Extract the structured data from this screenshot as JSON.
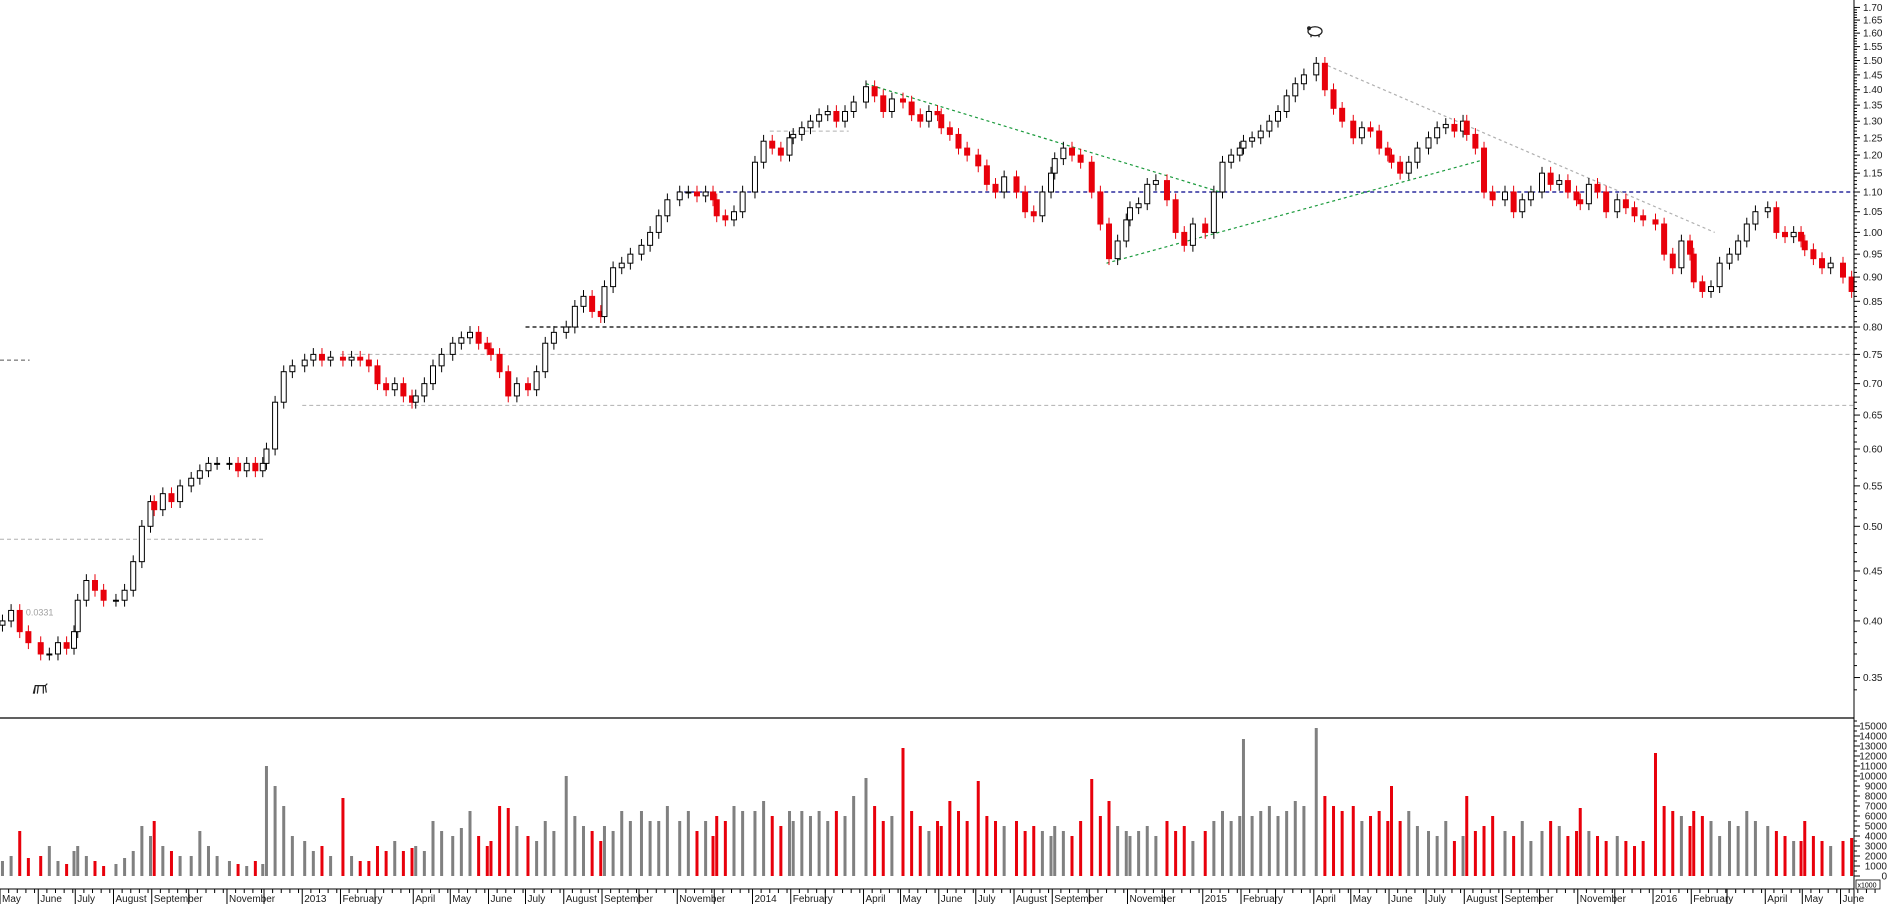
{
  "chart_data": {
    "type": "candlestick",
    "price_axis": {
      "scale": "log",
      "ylim": [
        0.33,
        1.72
      ],
      "ticks": [
        0.35,
        0.4,
        0.45,
        0.5,
        0.55,
        0.6,
        0.65,
        0.7,
        0.75,
        0.8,
        0.85,
        0.9,
        0.95,
        1.0,
        1.05,
        1.1,
        1.15,
        1.2,
        1.25,
        1.3,
        1.35,
        1.4,
        1.45,
        1.5,
        1.55,
        1.6,
        1.65,
        1.7
      ]
    },
    "volume_axis": {
      "unit_label": "x1000",
      "ylim": [
        0,
        15000
      ],
      "ticks": [
        0,
        1000,
        2000,
        3000,
        4000,
        5000,
        6000,
        7000,
        8000,
        9000,
        10000,
        11000,
        12000,
        13000,
        14000,
        15000
      ]
    },
    "x_axis": {
      "range": [
        "2012-05",
        "2016-06"
      ],
      "ticks": [
        {
          "date": "2012-05",
          "label": "May"
        },
        {
          "date": "2012-06",
          "label": "June"
        },
        {
          "date": "2012-07",
          "label": "July"
        },
        {
          "date": "2012-08",
          "label": "August"
        },
        {
          "date": "2012-09",
          "label": "September"
        },
        {
          "date": "2012-10",
          "label": ""
        },
        {
          "date": "2012-11",
          "label": "November"
        },
        {
          "date": "2012-12",
          "label": ""
        },
        {
          "date": "2013-01",
          "label": "2013"
        },
        {
          "date": "2013-02",
          "label": "February"
        },
        {
          "date": "2013-03",
          "label": ""
        },
        {
          "date": "2013-04",
          "label": "April"
        },
        {
          "date": "2013-05",
          "label": "May"
        },
        {
          "date": "2013-06",
          "label": "June"
        },
        {
          "date": "2013-07",
          "label": "July"
        },
        {
          "date": "2013-08",
          "label": "August"
        },
        {
          "date": "2013-09",
          "label": "September"
        },
        {
          "date": "2013-10",
          "label": ""
        },
        {
          "date": "2013-11",
          "label": "November"
        },
        {
          "date": "2013-12",
          "label": ""
        },
        {
          "date": "2014-01",
          "label": "2014"
        },
        {
          "date": "2014-02",
          "label": "February"
        },
        {
          "date": "2014-03",
          "label": ""
        },
        {
          "date": "2014-04",
          "label": "April"
        },
        {
          "date": "2014-05",
          "label": "May"
        },
        {
          "date": "2014-06",
          "label": "June"
        },
        {
          "date": "2014-07",
          "label": "July"
        },
        {
          "date": "2014-08",
          "label": "August"
        },
        {
          "date": "2014-09",
          "label": "September"
        },
        {
          "date": "2014-10",
          "label": ""
        },
        {
          "date": "2014-11",
          "label": "November"
        },
        {
          "date": "2014-12",
          "label": ""
        },
        {
          "date": "2015-01",
          "label": "2015"
        },
        {
          "date": "2015-02",
          "label": "February"
        },
        {
          "date": "2015-03",
          "label": ""
        },
        {
          "date": "2015-04",
          "label": "April"
        },
        {
          "date": "2015-05",
          "label": "May"
        },
        {
          "date": "2015-06",
          "label": "June"
        },
        {
          "date": "2015-07",
          "label": "July"
        },
        {
          "date": "2015-08",
          "label": "August"
        },
        {
          "date": "2015-09",
          "label": "September"
        },
        {
          "date": "2015-10",
          "label": ""
        },
        {
          "date": "2015-11",
          "label": "November"
        },
        {
          "date": "2015-12",
          "label": ""
        },
        {
          "date": "2016-01",
          "label": "2016"
        },
        {
          "date": "2016-02",
          "label": "February"
        },
        {
          "date": "2016-03",
          "label": ""
        },
        {
          "date": "2016-04",
          "label": "April"
        },
        {
          "date": "2016-05",
          "label": "May"
        },
        {
          "date": "2016-06",
          "label": "June"
        }
      ]
    },
    "colors": {
      "up": "#000000",
      "down": "#e8000b",
      "volume_up": "#808080",
      "volume_down": "#e8000b",
      "trendline": "#1a9a3c",
      "level_primary": "#00008b",
      "level_secondary": "#000000",
      "level_minor": "#b0b0b0"
    },
    "weekly_close": {
      "2012-05": [
        0.4,
        0.41,
        0.39,
        0.38
      ],
      "2012-06": [
        0.37,
        0.37,
        0.38,
        0.375,
        0.39
      ],
      "2012-07": [
        0.42,
        0.44,
        0.43,
        0.42
      ],
      "2012-08": [
        0.42,
        0.43,
        0.46,
        0.5,
        0.53
      ],
      "2012-09": [
        0.52,
        0.54,
        0.53,
        0.55
      ],
      "2012-10": [
        0.56,
        0.57,
        0.58,
        0.58
      ],
      "2012-11": [
        0.58,
        0.57,
        0.58,
        0.57,
        0.58
      ],
      "2012-12": [
        0.6,
        0.67,
        0.72,
        0.73
      ],
      "2013-01": [
        0.74,
        0.75,
        0.74,
        0.745
      ],
      "2013-02": [
        0.74,
        0.745,
        0.74,
        0.73
      ],
      "2013-03": [
        0.7,
        0.69,
        0.7,
        0.68,
        0.67
      ],
      "2013-04": [
        0.68,
        0.7,
        0.73,
        0.75
      ],
      "2013-05": [
        0.77,
        0.78,
        0.79,
        0.77,
        0.76
      ],
      "2013-06": [
        0.75,
        0.72,
        0.68,
        0.7
      ],
      "2013-07": [
        0.69,
        0.72,
        0.77,
        0.79
      ],
      "2013-08": [
        0.8,
        0.84,
        0.86,
        0.83,
        0.82
      ],
      "2013-09": [
        0.88,
        0.92,
        0.93,
        0.95
      ],
      "2013-10": [
        0.97,
        1.0,
        1.04,
        1.08
      ],
      "2013-11": [
        1.1,
        1.1,
        1.09,
        1.1,
        1.08
      ],
      "2013-12": [
        1.04,
        1.03,
        1.05,
        1.1
      ],
      "2014-01": [
        1.18,
        1.24,
        1.22,
        1.2,
        1.25
      ],
      "2014-02": [
        1.26,
        1.28,
        1.3,
        1.32
      ],
      "2014-03": [
        1.33,
        1.3,
        1.33,
        1.36
      ],
      "2014-04": [
        1.41,
        1.38,
        1.33,
        1.37
      ],
      "2014-05": [
        1.36,
        1.32,
        1.3,
        1.33,
        1.32
      ],
      "2014-06": [
        1.28,
        1.26,
        1.22,
        1.2
      ],
      "2014-07": [
        1.17,
        1.12,
        1.1,
        1.14
      ],
      "2014-08": [
        1.1,
        1.05,
        1.04,
        1.1,
        1.15
      ],
      "2014-09": [
        1.19,
        1.22,
        1.2,
        1.18
      ],
      "2014-10": [
        1.1,
        1.02,
        0.94,
        0.98,
        1.03
      ],
      "2014-11": [
        1.06,
        1.07,
        1.12,
        1.13
      ],
      "2014-12": [
        1.08,
        1.0,
        0.97,
        1.02
      ],
      "2015-01": [
        1.0,
        1.1,
        1.18,
        1.2,
        1.22
      ],
      "2015-02": [
        1.24,
        1.25,
        1.27,
        1.3
      ],
      "2015-03": [
        1.33,
        1.38,
        1.42,
        1.45
      ],
      "2015-04": [
        1.49,
        1.4,
        1.34,
        1.3
      ],
      "2015-05": [
        1.25,
        1.28,
        1.27,
        1.22,
        1.2
      ],
      "2015-06": [
        1.18,
        1.15,
        1.18,
        1.22
      ],
      "2015-07": [
        1.25,
        1.28,
        1.29,
        1.27,
        1.3
      ],
      "2015-08": [
        1.26,
        1.22,
        1.1,
        1.08
      ],
      "2015-09": [
        1.1,
        1.05,
        1.08,
        1.1
      ],
      "2015-10": [
        1.15,
        1.12,
        1.13,
        1.1,
        1.08
      ],
      "2015-11": [
        1.07,
        1.12,
        1.1,
        1.05
      ],
      "2015-12": [
        1.08,
        1.06,
        1.04,
        1.03
      ],
      "2016-01": [
        1.02,
        0.95,
        0.92,
        0.98,
        0.95
      ],
      "2016-02": [
        0.89,
        0.87,
        0.88,
        0.93
      ],
      "2016-03": [
        0.95,
        0.98,
        1.02,
        1.05
      ],
      "2016-04": [
        1.06,
        1.0,
        0.99,
        1.0,
        0.98
      ],
      "2016-05": [
        0.96,
        0.94,
        0.92,
        0.93
      ],
      "2016-06": [
        0.9,
        0.87
      ]
    },
    "weekly_volume": {
      "2012-05": [
        1500,
        2000,
        4500,
        1800
      ],
      "2012-06": [
        2000,
        3000,
        1500,
        1200,
        2500
      ],
      "2012-07": [
        3000,
        2000,
        1500,
        1000
      ],
      "2012-08": [
        1200,
        1800,
        2500,
        5000,
        4000
      ],
      "2012-09": [
        5500,
        3000,
        2500,
        2000
      ],
      "2012-10": [
        2000,
        4500,
        3000,
        2000
      ],
      "2012-11": [
        1500,
        1200,
        1000,
        1500,
        1200
      ],
      "2012-12": [
        11000,
        9000,
        7000,
        4000
      ],
      "2013-01": [
        3500,
        2500,
        3000,
        2000
      ],
      "2013-02": [
        7800,
        2000,
        1500,
        1500
      ],
      "2013-03": [
        3000,
        2500,
        3500,
        2500,
        2800
      ],
      "2013-04": [
        3000,
        2500,
        5500,
        4500
      ],
      "2013-05": [
        4000,
        4800,
        6500,
        4000,
        3000
      ],
      "2013-06": [
        3500,
        7000,
        6800,
        5000
      ],
      "2013-07": [
        4000,
        3500,
        5500,
        4500
      ],
      "2013-08": [
        10000,
        6000,
        5000,
        4500,
        3500
      ],
      "2013-09": [
        5000,
        4500,
        6500,
        5500
      ],
      "2013-10": [
        6500,
        5500,
        5500,
        7000
      ],
      "2013-11": [
        5500,
        6500,
        4500,
        5500,
        4000
      ],
      "2013-12": [
        6000,
        5500,
        7000,
        6500
      ],
      "2014-01": [
        6500,
        7500,
        6000,
        5000,
        6500
      ],
      "2014-02": [
        5500,
        6500,
        6000,
        6500
      ],
      "2014-03": [
        5500,
        6500,
        6000,
        8000
      ],
      "2014-04": [
        9800,
        7000,
        5500,
        6000
      ],
      "2014-05": [
        12800,
        6500,
        5000,
        4500,
        5500
      ],
      "2014-06": [
        5000,
        7500,
        6500,
        5500
      ],
      "2014-07": [
        9500,
        6000,
        5500,
        5000
      ],
      "2014-08": [
        5500,
        4500,
        5000,
        4500,
        4000
      ],
      "2014-09": [
        5000,
        4500,
        4000,
        5500
      ],
      "2014-10": [
        9700,
        6000,
        7500,
        5000,
        4500
      ],
      "2014-11": [
        4000,
        4500,
        5000,
        4000
      ],
      "2014-12": [
        5500,
        4500,
        5000,
        3500
      ],
      "2015-01": [
        4500,
        5500,
        6500,
        5500,
        6000
      ],
      "2015-02": [
        13700,
        6000,
        6500,
        7000
      ],
      "2015-03": [
        6000,
        6500,
        7500,
        7000
      ],
      "2015-04": [
        14800,
        8000,
        7000,
        6500
      ],
      "2015-05": [
        7000,
        5500,
        6000,
        6500,
        5500
      ],
      "2015-06": [
        9000,
        5500,
        6500,
        5000
      ],
      "2015-07": [
        4500,
        4000,
        5500,
        3500,
        4000
      ],
      "2015-08": [
        8000,
        4500,
        5000,
        6000
      ],
      "2015-09": [
        4500,
        4000,
        5500,
        3500
      ],
      "2015-10": [
        4500,
        5500,
        5000,
        4000,
        4500
      ],
      "2015-11": [
        6800,
        4500,
        4000,
        3500
      ],
      "2015-12": [
        4000,
        3500,
        3000,
        3500
      ],
      "2016-01": [
        12300,
        7000,
        6500,
        6000,
        5000
      ],
      "2016-02": [
        6500,
        6000,
        5500,
        4000
      ],
      "2016-03": [
        5500,
        5000,
        6500,
        5500
      ],
      "2016-04": [
        5000,
        4500,
        4000,
        3500,
        3500
      ],
      "2016-05": [
        5500,
        4000,
        3500,
        3000
      ],
      "2016-06": [
        3500,
        3800
      ]
    },
    "horizontal_levels": [
      {
        "price": 1.1,
        "from": "2013-11",
        "style": "primary"
      },
      {
        "price": 0.8,
        "from": "2013-07",
        "style": "secondary"
      },
      {
        "price": 0.75,
        "from": "2013-02",
        "style": "minor"
      },
      {
        "price": 0.665,
        "from": "2013-01",
        "style": "minor"
      },
      {
        "price": 0.485,
        "from": "2012-05",
        "to": "2012-12",
        "style": "minor"
      },
      {
        "price": 0.74,
        "from": "2012-05",
        "to": "2012-05-25",
        "style": "minor-dark"
      },
      {
        "price": 1.27,
        "from": "2014-01-15",
        "to": "2014-03-20",
        "style": "minor"
      }
    ],
    "trendlines": [
      {
        "from": [
          "2014-04-03",
          1.42
        ],
        "to": [
          "2015-01-15",
          1.1
        ],
        "color": "trendline"
      },
      {
        "from": [
          "2014-10-15",
          0.93
        ],
        "to": [
          "2015-08-20",
          1.19
        ],
        "color": "trendline"
      },
      {
        "from": [
          "2015-04-08",
          1.49
        ],
        "to": [
          "2016-02-20",
          1.0
        ],
        "color": "level_minor"
      }
    ],
    "annotations": [
      {
        "text": "0.0331",
        "date": "2012-05-22",
        "price": 0.405
      },
      {
        "icon": "bull-icon",
        "date": "2012-05-28",
        "price": 0.345
      },
      {
        "icon": "bear-icon",
        "date": "2015-04-02",
        "price": 1.63
      }
    ]
  }
}
